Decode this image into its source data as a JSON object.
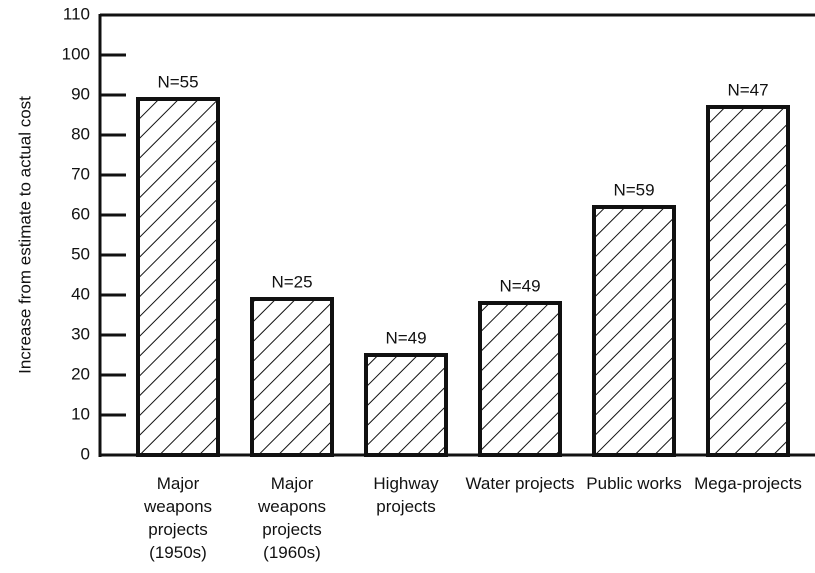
{
  "chart_data": {
    "type": "bar",
    "y_axis_label": "Increase from estimate to actual cost",
    "categories": [
      "Major weapons projects (1950s)",
      "Major weapons projects (1960s)",
      "Highway projects",
      "Water projects",
      "Public works",
      "Mega-projects"
    ],
    "values": [
      89,
      39,
      25,
      38,
      62,
      87
    ],
    "annotations": [
      "N=55",
      "N=25",
      "N=49",
      "N=49",
      "N=59",
      "N=47"
    ],
    "color": "#111111",
    "ylim": [
      0,
      110
    ],
    "yticks": [
      0,
      10,
      20,
      30,
      40,
      50,
      60,
      70,
      80,
      90,
      100,
      110
    ]
  }
}
